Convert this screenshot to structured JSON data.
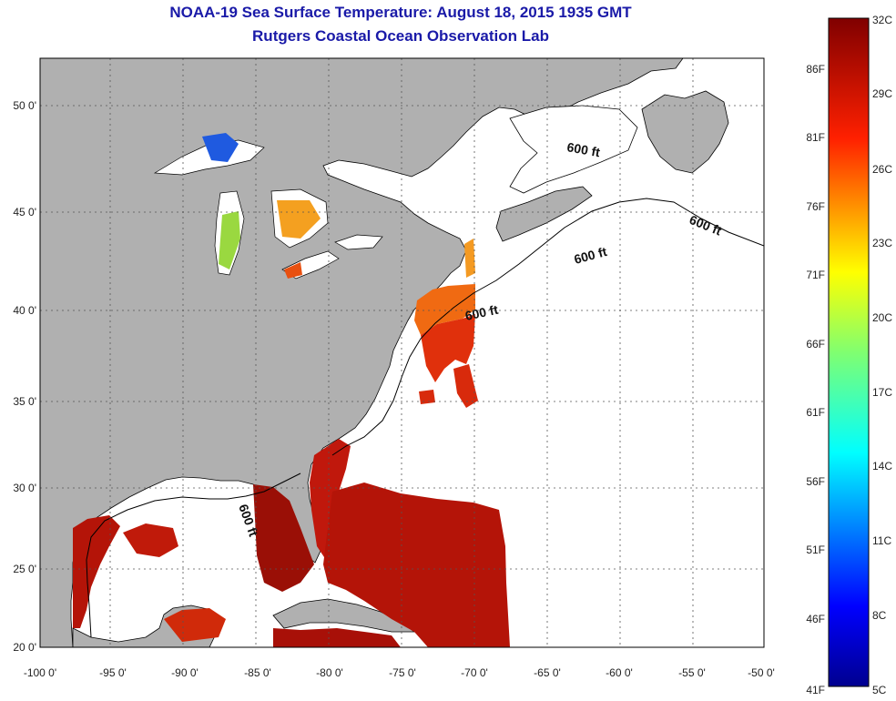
{
  "header": {
    "title_line1": "NOAA-19 Sea Surface Temperature:  August 18, 2015 1935 GMT",
    "title_line2": "Rutgers Coastal Ocean Observation Lab"
  },
  "axes": {
    "longitude_ticks": [
      "-100 0'",
      "-95 0'",
      "-90 0'",
      "-85 0'",
      "-80 0'",
      "-75 0'",
      "-70 0'",
      "-65 0'",
      "-60 0'",
      "-55 0'",
      "-50 0'"
    ],
    "latitude_ticks": [
      "50 0'",
      "45 0'",
      "40 0'",
      "35 0'",
      "30 0'",
      "25 0'",
      "20 0'"
    ]
  },
  "contours": {
    "label": "600 ft"
  },
  "colorbar": {
    "celsius_labels": [
      "32C",
      "29C",
      "26C",
      "23C",
      "20C",
      "17C",
      "14C",
      "11C",
      "8C",
      "5C"
    ],
    "fahrenheit_labels": [
      "86F",
      "81F",
      "76F",
      "71F",
      "66F",
      "61F",
      "56F",
      "51F",
      "46F",
      "41F"
    ],
    "range_c": [
      5,
      32
    ],
    "range_f": [
      41,
      90
    ]
  },
  "colors": {
    "land": "#b0b0b0",
    "no_data": "#ffffff",
    "title": "#1a1aa8",
    "warm": "#c0180c",
    "hot": "#9a0f06",
    "orange": "#f06010",
    "cold": "#1f5ae0"
  }
}
